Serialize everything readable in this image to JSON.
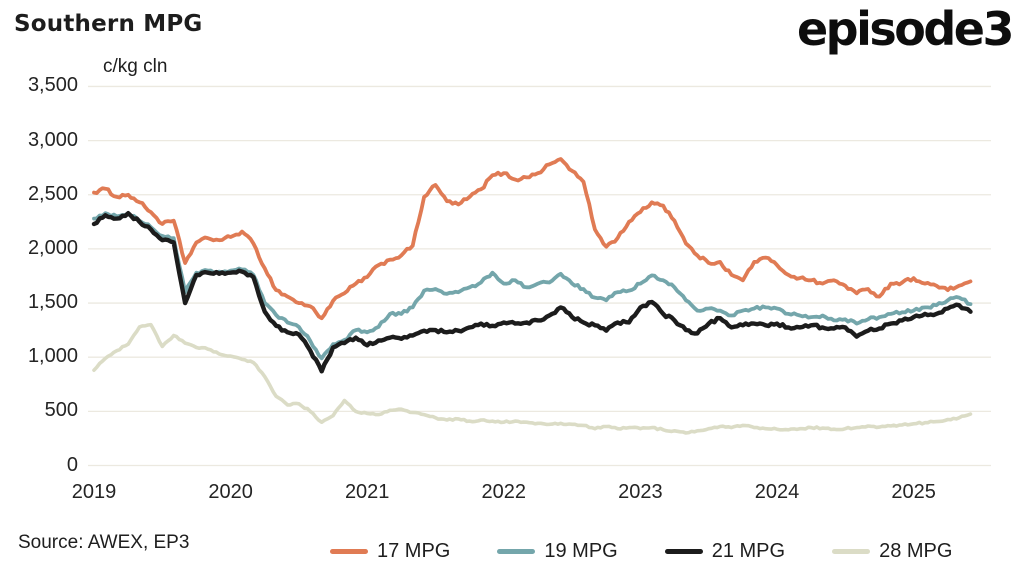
{
  "chart_data": {
    "type": "line",
    "title": "Southern MPG",
    "unit_label": "c/kg cln",
    "logo_text": "episode3",
    "source_text": "Source: AWEX, EP3",
    "x_unit": "monthly",
    "x_range": [
      "2019-01",
      "2025-06"
    ],
    "x_tick_labels": [
      "2019",
      "2020",
      "2021",
      "2022",
      "2023",
      "2024",
      "2025"
    ],
    "ylim": [
      0,
      3500
    ],
    "grid": "horizontal",
    "grid_color": "#ece9e0",
    "legend_position": "bottom",
    "y_ticks": [
      {
        "value": 3500,
        "label": "3,500"
      },
      {
        "value": 3000,
        "label": "3,000"
      },
      {
        "value": 2500,
        "label": "2,500"
      },
      {
        "value": 2000,
        "label": "2,000"
      },
      {
        "value": 1500,
        "label": "1,500"
      },
      {
        "value": 1000,
        "label": "1,000"
      },
      {
        "value": 500,
        "label": "500"
      },
      {
        "value": 0,
        "label": "0"
      }
    ],
    "series": [
      {
        "name": "17 MPG",
        "color": "#e07b54",
        "values": [
          2520,
          2555,
          2480,
          2500,
          2430,
          2340,
          2230,
          2260,
          1870,
          2060,
          2100,
          2080,
          2110,
          2160,
          2050,
          1820,
          1620,
          1560,
          1500,
          1470,
          1360,
          1520,
          1590,
          1680,
          1740,
          1850,
          1900,
          1940,
          2030,
          2480,
          2590,
          2440,
          2410,
          2480,
          2550,
          2680,
          2700,
          2640,
          2660,
          2700,
          2780,
          2830,
          2720,
          2620,
          2180,
          2020,
          2100,
          2250,
          2340,
          2430,
          2400,
          2260,
          2050,
          1940,
          1870,
          1880,
          1760,
          1710,
          1880,
          1920,
          1850,
          1760,
          1730,
          1710,
          1680,
          1710,
          1660,
          1590,
          1630,
          1560,
          1680,
          1690,
          1730,
          1680,
          1660,
          1620,
          1660,
          1700
        ]
      },
      {
        "name": "19 MPG",
        "color": "#74a6ab",
        "values": [
          2280,
          2330,
          2300,
          2330,
          2260,
          2200,
          2120,
          2100,
          1600,
          1780,
          1800,
          1790,
          1800,
          1810,
          1760,
          1500,
          1390,
          1320,
          1280,
          1150,
          990,
          1120,
          1160,
          1250,
          1230,
          1280,
          1400,
          1400,
          1460,
          1615,
          1630,
          1585,
          1600,
          1645,
          1690,
          1780,
          1680,
          1710,
          1645,
          1680,
          1690,
          1770,
          1680,
          1630,
          1550,
          1525,
          1600,
          1615,
          1680,
          1755,
          1710,
          1645,
          1525,
          1430,
          1450,
          1430,
          1385,
          1430,
          1450,
          1460,
          1450,
          1400,
          1385,
          1370,
          1385,
          1340,
          1350,
          1310,
          1350,
          1370,
          1400,
          1415,
          1430,
          1460,
          1480,
          1525,
          1550,
          1490
        ]
      },
      {
        "name": "21 MPG",
        "color": "#1c1c1c",
        "values": [
          2230,
          2310,
          2280,
          2330,
          2250,
          2180,
          2080,
          2060,
          1500,
          1760,
          1780,
          1770,
          1780,
          1790,
          1740,
          1420,
          1290,
          1230,
          1210,
          1060,
          870,
          1090,
          1130,
          1180,
          1110,
          1155,
          1180,
          1170,
          1200,
          1245,
          1250,
          1230,
          1245,
          1275,
          1310,
          1290,
          1320,
          1310,
          1320,
          1340,
          1385,
          1460,
          1370,
          1320,
          1295,
          1245,
          1320,
          1320,
          1460,
          1510,
          1400,
          1340,
          1250,
          1220,
          1310,
          1360,
          1275,
          1295,
          1310,
          1295,
          1310,
          1275,
          1275,
          1295,
          1275,
          1265,
          1275,
          1190,
          1245,
          1265,
          1310,
          1340,
          1370,
          1400,
          1400,
          1450,
          1480,
          1420
        ]
      },
      {
        "name": "28 MPG",
        "color": "#dbdcc6",
        "values": [
          880,
          990,
          1060,
          1120,
          1280,
          1300,
          1100,
          1200,
          1130,
          1090,
          1075,
          1030,
          1010,
          980,
          950,
          820,
          640,
          560,
          570,
          500,
          400,
          460,
          600,
          500,
          480,
          470,
          510,
          520,
          490,
          470,
          440,
          420,
          430,
          410,
          420,
          410,
          400,
          410,
          400,
          390,
          380,
          390,
          380,
          370,
          340,
          360,
          340,
          350,
          340,
          350,
          330,
          320,
          300,
          320,
          340,
          360,
          350,
          370,
          350,
          340,
          335,
          330,
          340,
          350,
          345,
          335,
          340,
          350,
          365,
          355,
          365,
          375,
          385,
          395,
          405,
          425,
          440,
          475
        ]
      }
    ]
  }
}
